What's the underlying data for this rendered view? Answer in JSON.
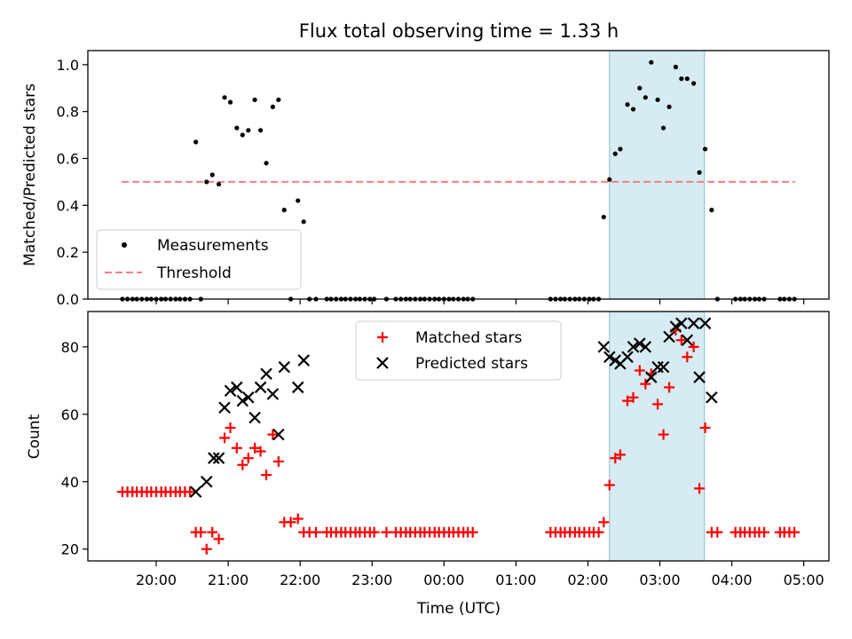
{
  "chart_data": {
    "type": "scatter",
    "title": "Flux total observing time = 1.33 h",
    "xlabel": "Time (UTC)",
    "x_units": "hours since 20:00 UTC",
    "xlim": [
      -0.95,
      9.35
    ],
    "x_ticks": [
      0,
      1,
      2,
      3,
      4,
      5,
      6,
      7,
      8,
      9
    ],
    "x_tick_labels": [
      "20:00",
      "21:00",
      "22:00",
      "23:00",
      "00:00",
      "01:00",
      "02:00",
      "03:00",
      "04:00",
      "05:00"
    ],
    "highlight_span": [
      6.3,
      7.62
    ],
    "top_panel": {
      "ylabel": "Matched/Predicted stars",
      "ylim": [
        0,
        1.06
      ],
      "y_ticks": [
        0,
        0.2,
        0.4,
        0.6,
        0.8,
        1.0
      ],
      "y_tick_labels": [
        "0.0",
        "0.2",
        "0.4",
        "0.6",
        "0.8",
        "1.0"
      ],
      "threshold": {
        "value": 0.5,
        "x_range": [
          -0.48,
          8.88
        ],
        "color": "#f08080"
      },
      "legend": {
        "location": "lower-left",
        "entries": [
          "Measurements",
          "Threshold"
        ]
      },
      "series": [
        {
          "name": "Measurements",
          "color": "#000000",
          "points": [
            [
              -0.47,
              0
            ],
            [
              -0.4,
              0
            ],
            [
              -0.33,
              0
            ],
            [
              -0.27,
              0
            ],
            [
              -0.2,
              0
            ],
            [
              -0.13,
              0
            ],
            [
              -0.07,
              0
            ],
            [
              0,
              0
            ],
            [
              0.07,
              0
            ],
            [
              0.13,
              0
            ],
            [
              0.2,
              0
            ],
            [
              0.27,
              0
            ],
            [
              0.33,
              0
            ],
            [
              0.4,
              0
            ],
            [
              0.47,
              0
            ],
            [
              0.55,
              0.67
            ],
            [
              0.62,
              0
            ],
            [
              0.7,
              0.5
            ],
            [
              0.78,
              0.53
            ],
            [
              0.87,
              0.49
            ],
            [
              0.95,
              0.86
            ],
            [
              1.03,
              0.84
            ],
            [
              1.12,
              0.73
            ],
            [
              1.2,
              0.7
            ],
            [
              1.28,
              0.72
            ],
            [
              1.37,
              0.85
            ],
            [
              1.45,
              0.72
            ],
            [
              1.53,
              0.58
            ],
            [
              1.62,
              0.82
            ],
            [
              1.7,
              0.85
            ],
            [
              1.78,
              0.38
            ],
            [
              1.87,
              0
            ],
            [
              1.97,
              0.42
            ],
            [
              2.05,
              0.33
            ],
            [
              2.13,
              0
            ],
            [
              2.22,
              0
            ],
            [
              2.37,
              0
            ],
            [
              2.43,
              0
            ],
            [
              2.5,
              0
            ],
            [
              2.57,
              0
            ],
            [
              2.63,
              0
            ],
            [
              2.7,
              0
            ],
            [
              2.77,
              0
            ],
            [
              2.83,
              0
            ],
            [
              2.9,
              0
            ],
            [
              2.97,
              0
            ],
            [
              3.03,
              0
            ],
            [
              3.2,
              0
            ],
            [
              3.33,
              0
            ],
            [
              3.4,
              0
            ],
            [
              3.47,
              0
            ],
            [
              3.53,
              0
            ],
            [
              3.6,
              0
            ],
            [
              3.67,
              0
            ],
            [
              3.73,
              0
            ],
            [
              3.8,
              0
            ],
            [
              3.87,
              0
            ],
            [
              3.93,
              0
            ],
            [
              4.0,
              0
            ],
            [
              4.07,
              0
            ],
            [
              4.13,
              0
            ],
            [
              4.2,
              0
            ],
            [
              4.27,
              0
            ],
            [
              4.33,
              0
            ],
            [
              4.4,
              0
            ],
            [
              5.48,
              0
            ],
            [
              5.55,
              0
            ],
            [
              5.62,
              0
            ],
            [
              5.68,
              0
            ],
            [
              5.75,
              0
            ],
            [
              5.82,
              0
            ],
            [
              5.88,
              0
            ],
            [
              5.95,
              0
            ],
            [
              6.02,
              0
            ],
            [
              6.08,
              0
            ],
            [
              6.15,
              0
            ],
            [
              6.22,
              0.35
            ],
            [
              6.3,
              0.51
            ],
            [
              6.38,
              0.62
            ],
            [
              6.45,
              0.64
            ],
            [
              6.55,
              0.83
            ],
            [
              6.63,
              0.81
            ],
            [
              6.72,
              0.9
            ],
            [
              6.8,
              0.86
            ],
            [
              6.88,
              1.01
            ],
            [
              6.97,
              0.85
            ],
            [
              7.05,
              0.73
            ],
            [
              7.13,
              0.82
            ],
            [
              7.22,
              0.99
            ],
            [
              7.3,
              0.94
            ],
            [
              7.38,
              0.94
            ],
            [
              7.47,
              0.92
            ],
            [
              7.55,
              0.54
            ],
            [
              7.63,
              0.64
            ],
            [
              7.72,
              0.38
            ],
            [
              7.8,
              0
            ],
            [
              8.05,
              0
            ],
            [
              8.12,
              0
            ],
            [
              8.18,
              0
            ],
            [
              8.25,
              0
            ],
            [
              8.32,
              0
            ],
            [
              8.38,
              0
            ],
            [
              8.45,
              0
            ],
            [
              8.67,
              0
            ],
            [
              8.73,
              0
            ],
            [
              8.8,
              0
            ],
            [
              8.87,
              0
            ]
          ]
        }
      ]
    },
    "bottom_panel": {
      "ylabel": "Count",
      "ylim": [
        16.5,
        90.5
      ],
      "y_ticks": [
        20,
        40,
        60,
        80
      ],
      "y_tick_labels": [
        "20",
        "40",
        "60",
        "80"
      ],
      "legend": {
        "location": "upper-center",
        "entries": [
          "Matched stars",
          "Predicted stars"
        ]
      },
      "series": [
        {
          "name": "Matched stars",
          "marker": "+",
          "color": "#ff0000",
          "points": [
            [
              -0.47,
              37
            ],
            [
              -0.4,
              37
            ],
            [
              -0.33,
              37
            ],
            [
              -0.27,
              37
            ],
            [
              -0.2,
              37
            ],
            [
              -0.13,
              37
            ],
            [
              -0.07,
              37
            ],
            [
              0,
              37
            ],
            [
              0.07,
              37
            ],
            [
              0.13,
              37
            ],
            [
              0.2,
              37
            ],
            [
              0.27,
              37
            ],
            [
              0.33,
              37
            ],
            [
              0.4,
              37
            ],
            [
              0.47,
              37
            ],
            [
              0.55,
              25
            ],
            [
              0.62,
              25
            ],
            [
              0.7,
              20
            ],
            [
              0.78,
              25
            ],
            [
              0.87,
              23
            ],
            [
              0.95,
              53
            ],
            [
              1.03,
              56
            ],
            [
              1.12,
              50
            ],
            [
              1.2,
              45
            ],
            [
              1.28,
              47
            ],
            [
              1.37,
              50
            ],
            [
              1.45,
              49
            ],
            [
              1.53,
              42
            ],
            [
              1.62,
              54
            ],
            [
              1.7,
              46
            ],
            [
              1.78,
              28
            ],
            [
              1.87,
              28
            ],
            [
              1.97,
              29
            ],
            [
              2.05,
              25
            ],
            [
              2.13,
              25
            ],
            [
              2.22,
              25
            ],
            [
              2.37,
              25
            ],
            [
              2.43,
              25
            ],
            [
              2.5,
              25
            ],
            [
              2.57,
              25
            ],
            [
              2.63,
              25
            ],
            [
              2.7,
              25
            ],
            [
              2.77,
              25
            ],
            [
              2.83,
              25
            ],
            [
              2.9,
              25
            ],
            [
              2.97,
              25
            ],
            [
              3.03,
              25
            ],
            [
              3.2,
              25
            ],
            [
              3.33,
              25
            ],
            [
              3.4,
              25
            ],
            [
              3.47,
              25
            ],
            [
              3.53,
              25
            ],
            [
              3.6,
              25
            ],
            [
              3.67,
              25
            ],
            [
              3.73,
              25
            ],
            [
              3.8,
              25
            ],
            [
              3.87,
              25
            ],
            [
              3.93,
              25
            ],
            [
              4.0,
              25
            ],
            [
              4.07,
              25
            ],
            [
              4.13,
              25
            ],
            [
              4.2,
              25
            ],
            [
              4.27,
              25
            ],
            [
              4.33,
              25
            ],
            [
              4.4,
              25
            ],
            [
              5.48,
              25
            ],
            [
              5.55,
              25
            ],
            [
              5.62,
              25
            ],
            [
              5.68,
              25
            ],
            [
              5.75,
              25
            ],
            [
              5.82,
              25
            ],
            [
              5.88,
              25
            ],
            [
              5.95,
              25
            ],
            [
              6.02,
              25
            ],
            [
              6.08,
              25
            ],
            [
              6.15,
              25
            ],
            [
              6.22,
              28
            ],
            [
              6.3,
              39
            ],
            [
              6.38,
              47
            ],
            [
              6.45,
              48
            ],
            [
              6.55,
              64
            ],
            [
              6.63,
              65
            ],
            [
              6.72,
              73
            ],
            [
              6.8,
              69
            ],
            [
              6.88,
              72
            ],
            [
              6.97,
              63
            ],
            [
              7.05,
              54
            ],
            [
              7.13,
              68
            ],
            [
              7.22,
              85
            ],
            [
              7.3,
              82
            ],
            [
              7.38,
              77
            ],
            [
              7.47,
              80
            ],
            [
              7.55,
              38
            ],
            [
              7.63,
              56
            ],
            [
              7.72,
              25
            ],
            [
              7.8,
              25
            ],
            [
              8.05,
              25
            ],
            [
              8.12,
              25
            ],
            [
              8.18,
              25
            ],
            [
              8.25,
              25
            ],
            [
              8.32,
              25
            ],
            [
              8.38,
              25
            ],
            [
              8.45,
              25
            ],
            [
              8.67,
              25
            ],
            [
              8.73,
              25
            ],
            [
              8.8,
              25
            ],
            [
              8.87,
              25
            ]
          ]
        },
        {
          "name": "Predicted stars",
          "marker": "x",
          "color": "#000000",
          "points": [
            [
              0.55,
              37
            ],
            [
              0.7,
              40
            ],
            [
              0.8,
              47
            ],
            [
              0.87,
              47
            ],
            [
              0.95,
              62
            ],
            [
              1.03,
              67
            ],
            [
              1.12,
              68
            ],
            [
              1.2,
              64
            ],
            [
              1.28,
              65
            ],
            [
              1.37,
              59
            ],
            [
              1.45,
              68
            ],
            [
              1.53,
              72
            ],
            [
              1.62,
              66
            ],
            [
              1.7,
              54
            ],
            [
              1.78,
              74
            ],
            [
              1.97,
              68
            ],
            [
              2.05,
              76
            ],
            [
              6.22,
              80
            ],
            [
              6.3,
              77
            ],
            [
              6.38,
              76
            ],
            [
              6.45,
              75
            ],
            [
              6.55,
              77
            ],
            [
              6.63,
              80
            ],
            [
              6.72,
              81
            ],
            [
              6.8,
              80
            ],
            [
              6.88,
              71
            ],
            [
              6.97,
              74
            ],
            [
              7.05,
              74
            ],
            [
              7.13,
              83
            ],
            [
              7.22,
              86
            ],
            [
              7.3,
              87
            ],
            [
              7.38,
              82
            ],
            [
              7.47,
              87
            ],
            [
              7.55,
              71
            ],
            [
              7.63,
              87
            ],
            [
              7.72,
              65
            ]
          ]
        }
      ]
    }
  }
}
